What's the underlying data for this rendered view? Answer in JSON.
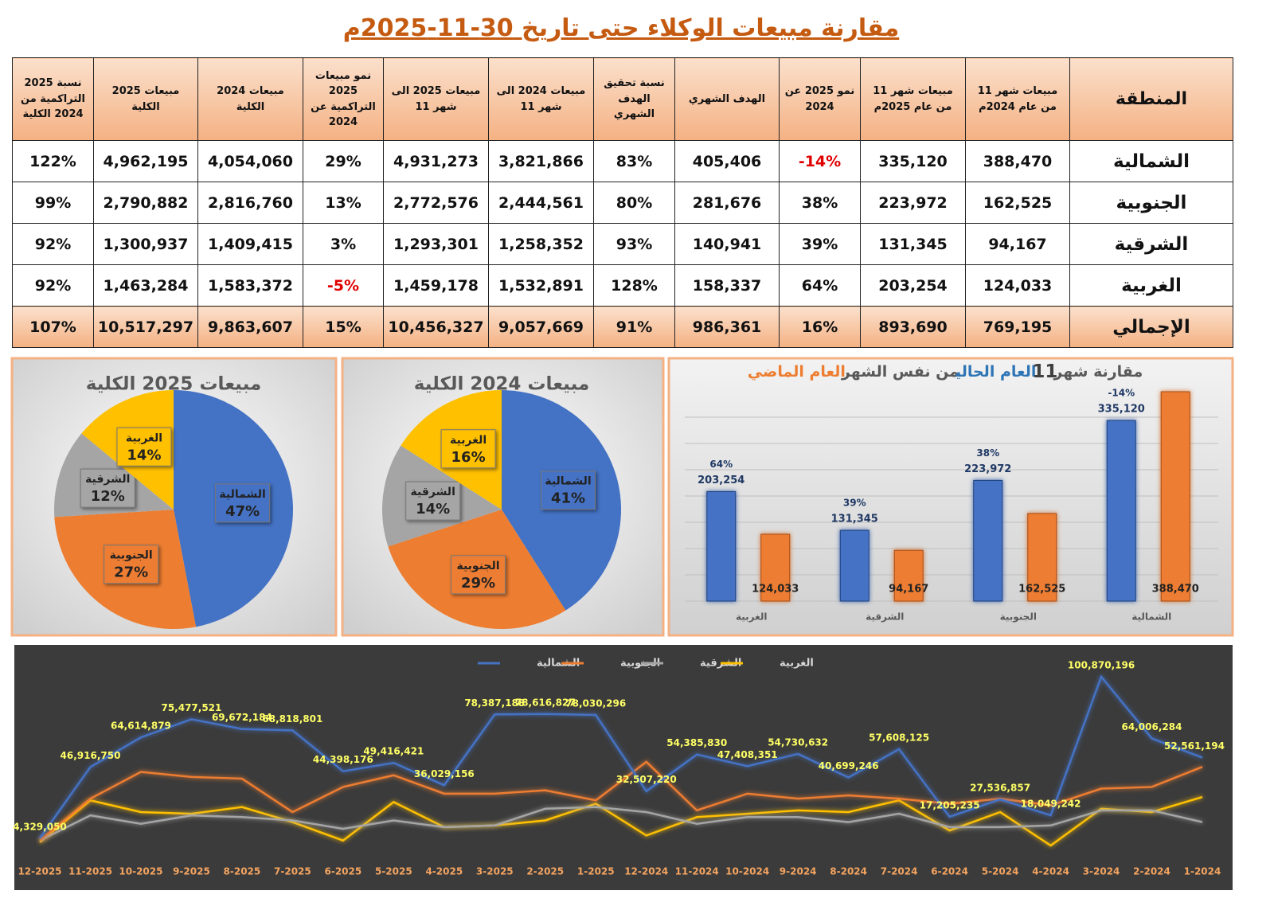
{
  "title": "مقارنة مبيعات الوكلاء حتى تاريخ 30-11-2025م",
  "table": {
    "columns": [
      "المنطقة",
      "مبيعات شهر 11 من عام 2024م",
      "مبيعات شهر 11 من عام 2025م",
      "نمو 2025 عن 2024",
      "الهدف الشهري",
      "نسبة تحقيق الهدف الشهري",
      "مبيعات 2024 الى شهر 11",
      "مبيعات 2025 الى شهر 11",
      "نمو مبيعات 2025 التراكمية عن 2024",
      "مبيعات 2024 الكلية",
      "مبيعات 2025 الكلية",
      "نسبة 2025 التراكمية من 2024 الكلية"
    ],
    "rows": [
      [
        "الشمالية",
        "388,470",
        "335,120",
        "-14%",
        "405,406",
        "83%",
        "3,821,866",
        "4,931,273",
        "29%",
        "4,054,060",
        "4,962,195",
        "122%"
      ],
      [
        "الجنوبية",
        "162,525",
        "223,972",
        "38%",
        "281,676",
        "80%",
        "2,444,561",
        "2,772,576",
        "13%",
        "2,816,760",
        "2,790,882",
        "99%"
      ],
      [
        "الشرقية",
        "94,167",
        "131,345",
        "39%",
        "140,941",
        "93%",
        "1,258,352",
        "1,293,301",
        "3%",
        "1,409,415",
        "1,300,937",
        "92%"
      ],
      [
        "الغربية",
        "124,033",
        "203,254",
        "64%",
        "158,337",
        "128%",
        "1,532,891",
        "1,459,178",
        "-5%",
        "1,583,372",
        "1,463,284",
        "92%"
      ],
      [
        "الإجمالي",
        "769,195",
        "893,690",
        "16%",
        "986,361",
        "91%",
        "9,057,669",
        "10,456,327",
        "15%",
        "9,863,607",
        "10,517,297",
        "107%"
      ]
    ]
  },
  "chart_data": [
    {
      "type": "pie",
      "title": "مبيعات 2025 الكلية",
      "categories": [
        "الشمالية",
        "الجنوبية",
        "الشرقية",
        "الغربية"
      ],
      "values": [
        47,
        27,
        12,
        14
      ],
      "value_labels": [
        "47%",
        "27%",
        "12%",
        "14%"
      ],
      "colors": [
        "#4472c4",
        "#ed7d31",
        "#a5a5a5",
        "#ffc000"
      ]
    },
    {
      "type": "pie",
      "title": "مبيعات 2024 الكلية",
      "categories": [
        "الشمالية",
        "الجنوبية",
        "الشرقية",
        "الغربية"
      ],
      "values": [
        41,
        29,
        14,
        16
      ],
      "value_labels": [
        "41%",
        "29%",
        "14%",
        "16%"
      ],
      "colors": [
        "#4472c4",
        "#ed7d31",
        "#a5a5a5",
        "#ffc000"
      ]
    },
    {
      "type": "bar",
      "title": [
        "مقارنة شهر",
        "11",
        "العام الحالي",
        "من نفس الشهر",
        "العام الماضي"
      ],
      "categories": [
        "الغربية",
        "الشرقية",
        "الجنوبية",
        "الشمالية"
      ],
      "annotations": [
        "64%",
        "39%",
        "38%",
        "-14%"
      ],
      "series": [
        {
          "color": "#4472c4",
          "values": [
            203254,
            131345,
            223972,
            335120
          ],
          "value_labels": [
            "203,254",
            "131,345",
            "223,972",
            "335,120"
          ]
        },
        {
          "color": "#ed7d31",
          "values": [
            124033,
            94167,
            162525,
            388470
          ],
          "value_labels": [
            "124,033",
            "94,167",
            "162,525",
            "388,470"
          ]
        }
      ]
    },
    {
      "type": "line",
      "categories": [
        "12-2025",
        "11-2025",
        "10-2025",
        "9-2025",
        "8-2025",
        "7-2025",
        "6-2025",
        "5-2025",
        "4-2025",
        "3-2025",
        "2-2025",
        "1-2025",
        "12-2024",
        "11-2024",
        "10-2024",
        "9-2024",
        "8-2024",
        "7-2024",
        "6-2024",
        "5-2024",
        "4-2024",
        "3-2024",
        "2-2024",
        "1-2024"
      ],
      "series": [
        {
          "name": "الشمالية",
          "color": "#4472c4",
          "values": [
            4329050,
            46916750,
            64614879,
            75477521,
            69672184,
            68818801,
            44398176,
            49416421,
            36029156,
            78387188,
            78616827,
            78030296,
            32507220,
            54385830,
            47408351,
            54730632,
            40699246,
            57608125,
            17205235,
            27536857,
            18049242,
            100870196,
            64006284,
            52561194
          ],
          "value_labels": [
            "4,329,050",
            "46,916,750",
            "64,614,879",
            "75,477,521",
            "69,672,184",
            "68,818,801",
            "44,398,176",
            "49,416,421",
            "36,029,156",
            "78,387,188",
            "78,616,827",
            "78,030,296",
            "32,507,220",
            "54,385,830",
            "47,408,351",
            "54,730,632",
            "40,699,246",
            "57,608,125",
            "17,205,235",
            "27,536,857",
            "18,049,242",
            "100,870,196",
            "64,006,284",
            "52,561,194"
          ]
        },
        {
          "name": "الجنوبية",
          "color": "#ed7d31",
          "values": [
            3000000,
            28000000,
            44000000,
            41000000,
            40000000,
            20000000,
            35000000,
            42000000,
            31000000,
            31000000,
            33000000,
            27000000,
            50000000,
            21000000,
            31000000,
            28000000,
            30000000,
            28000000,
            25000000,
            28000000,
            24000000,
            34000000,
            35000000,
            47000000
          ]
        },
        {
          "name": "الشرقية",
          "color": "#a5a5a5",
          "values": [
            3000000,
            18000000,
            13000000,
            18000000,
            17000000,
            15000000,
            10000000,
            15000000,
            11000000,
            12000000,
            22000000,
            23000000,
            20000000,
            13000000,
            17000000,
            17000000,
            14000000,
            19000000,
            11000000,
            11000000,
            12000000,
            21000000,
            21000000,
            14000000
          ]
        },
        {
          "name": "الغربية",
          "color": "#ffc000",
          "values": [
            2000000,
            27000000,
            20000000,
            19000000,
            23000000,
            14000000,
            3000000,
            26000000,
            11000000,
            12000000,
            15000000,
            25000000,
            6000000,
            17000000,
            19000000,
            21000000,
            20000000,
            27000000,
            9000000,
            20000000,
            0,
            22000000,
            20000000,
            29000000
          ]
        }
      ]
    }
  ]
}
